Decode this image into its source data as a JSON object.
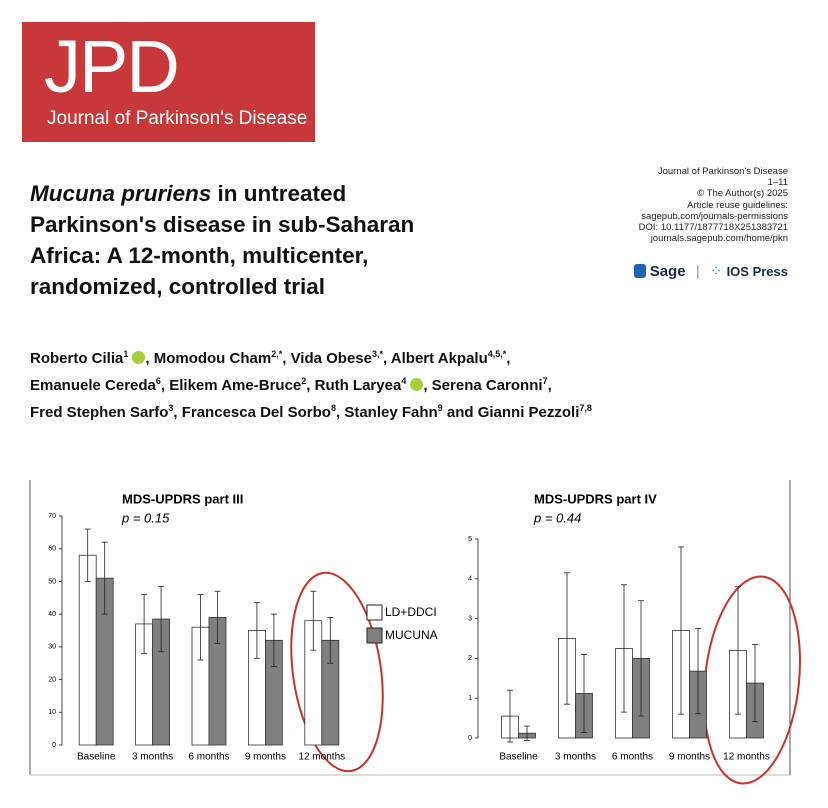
{
  "header": {
    "logo": "JPD",
    "journal": "Journal of Parkinson's Disease",
    "meta": [
      "Journal of Parkinson's Disease",
      "1–11",
      "© The Author(s) 2025",
      "Article reuse guidelines:",
      "sagepub.com/journals-permissions",
      "DOI: 10.1177/1877718X251383721",
      "journals.sagepub.com/home/pkn"
    ],
    "publishers": [
      "Sage",
      "IOS Press"
    ]
  },
  "article": {
    "title_italic": "Mucuna pruriens",
    "title_lines": [
      " in untreated",
      "Parkinson's disease in sub-Saharan",
      "Africa: A 12-month, multicenter,",
      "randomized, controlled trial"
    ],
    "authors": [
      [
        {
          "name": "Roberto Cilia",
          "sup": "1",
          "orcid": true,
          "after": ", "
        },
        {
          "name": "Momodou Cham",
          "sup": "2,*",
          "after": ", "
        },
        {
          "name": "Vida Obese",
          "sup": "3,*",
          "after": ", "
        },
        {
          "name": "Albert Akpalu",
          "sup": "4,5,*",
          "after": ","
        }
      ],
      [
        {
          "name": "Emanuele Cereda",
          "sup": "6",
          "after": ", "
        },
        {
          "name": "Elikem Ame-Bruce",
          "sup": "2",
          "after": ", "
        },
        {
          "name": "Ruth Laryea",
          "sup": "4",
          "orcid": true,
          "after": ", "
        },
        {
          "name": "Serena Caronni",
          "sup": "7",
          "after": ","
        }
      ],
      [
        {
          "name": "Fred Stephen Sarfo",
          "sup": "3",
          "after": ", "
        },
        {
          "name": "Francesca Del Sorbo",
          "sup": "8",
          "after": ", "
        },
        {
          "name": "Stanley Fahn",
          "sup": "9",
          "after": " and "
        },
        {
          "name": "Gianni Pezzoli",
          "sup": "7,8"
        }
      ]
    ]
  },
  "chart_data": [
    {
      "type": "bar",
      "title": "MDS-UPDRS part III",
      "subtitle": "p = 0.15",
      "categories": [
        "Baseline",
        "3 months",
        "6 months",
        "9 months",
        "12 months"
      ],
      "series": [
        {
          "name": "LD+DDCI",
          "color": "#ffffff",
          "values": [
            58,
            37,
            36,
            35,
            38
          ],
          "errors": [
            8,
            9,
            10,
            8.5,
            9
          ]
        },
        {
          "name": "MUCUNA",
          "color": "#808080",
          "values": [
            51,
            38.5,
            39,
            32,
            32
          ],
          "errors": [
            11,
            10,
            8,
            8,
            7
          ]
        }
      ],
      "ylim": [
        0,
        70
      ],
      "yticks": [
        0,
        10,
        20,
        30,
        40,
        50,
        60,
        70
      ],
      "legend": "right"
    },
    {
      "type": "bar",
      "title": "MDS-UPDRS part IV",
      "subtitle": "p = 0.44",
      "categories": [
        "Baseline",
        "3 months",
        "6 months",
        "9 months",
        "12 months"
      ],
      "series": [
        {
          "name": "LD+DDCI",
          "color": "#ffffff",
          "values": [
            0.55,
            2.5,
            2.25,
            2.7,
            2.2
          ],
          "errors": [
            0.65,
            1.65,
            1.6,
            2.1,
            1.6
          ]
        },
        {
          "name": "MUCUNA",
          "color": "#808080",
          "values": [
            0.12,
            1.12,
            2.0,
            1.68,
            1.38
          ],
          "errors": [
            0.18,
            0.98,
            1.45,
            1.07,
            0.97
          ]
        }
      ],
      "ylim": [
        0,
        5
      ],
      "yticks": [
        0,
        1,
        2,
        3,
        4,
        5
      ]
    }
  ]
}
